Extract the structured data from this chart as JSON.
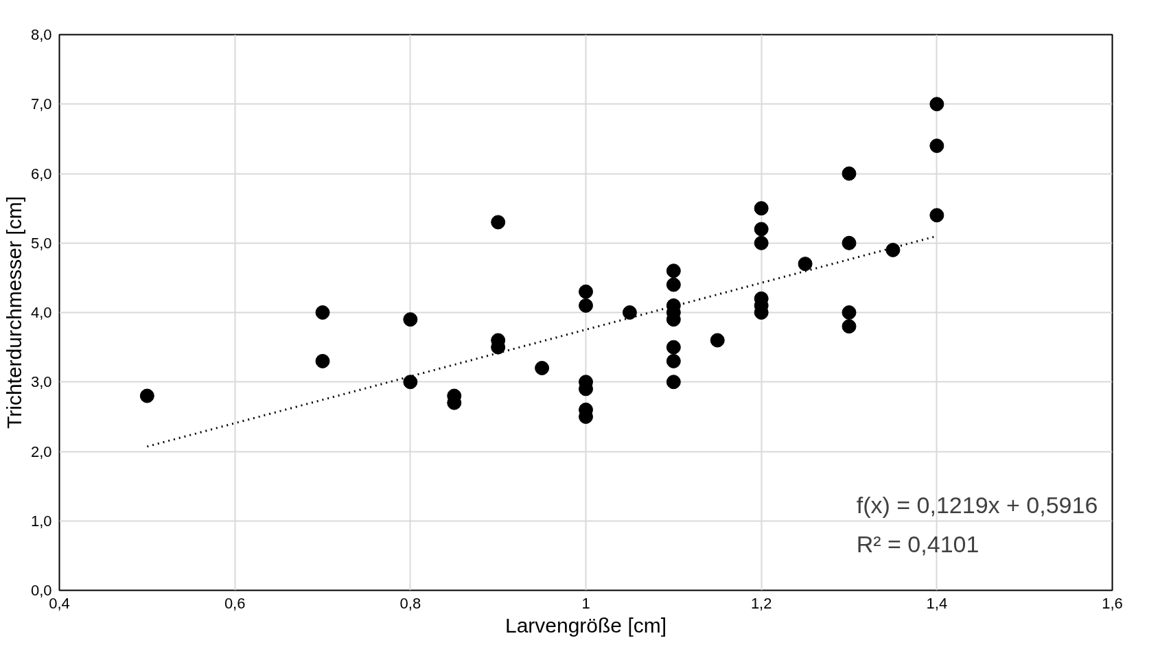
{
  "chart_data": {
    "type": "scatter",
    "xlabel": "Larvengröße [cm]",
    "ylabel": "Trichterdurchmesser [cm]",
    "xlim": [
      0.4,
      1.6
    ],
    "ylim": [
      0,
      8
    ],
    "xticks": [
      {
        "value": 0.4,
        "label": "0,4"
      },
      {
        "value": 0.6,
        "label": "0,6"
      },
      {
        "value": 0.8,
        "label": "0,8"
      },
      1,
      {
        "value": 1.2,
        "label": "1,2"
      },
      {
        "value": 1.4,
        "label": "1,4"
      },
      {
        "value": 1.6,
        "label": "1,6"
      }
    ],
    "yticks": [
      {
        "value": 0,
        "label": "0,0"
      },
      {
        "value": 1,
        "label": "1,0"
      },
      {
        "value": 2,
        "label": "2,0"
      },
      {
        "value": 3,
        "label": "3,0"
      },
      {
        "value": 4,
        "label": "4,0"
      },
      {
        "value": 5,
        "label": "5,0"
      },
      {
        "value": 6,
        "label": "6,0"
      },
      {
        "value": 7,
        "label": "7,0"
      },
      {
        "value": 8,
        "label": "8,0"
      }
    ],
    "grid": true,
    "marker": "circle",
    "series": [
      {
        "color": "#000000",
        "x": [
          0.5,
          0.7,
          0.7,
          0.8,
          0.8,
          0.85,
          0.85,
          0.9,
          0.9,
          0.9,
          0.95,
          1.0,
          1.0,
          1.0,
          1.0,
          1.0,
          1.0,
          1.05,
          1.1,
          1.1,
          1.1,
          1.1,
          1.1,
          1.1,
          1.1,
          1.1,
          1.15,
          1.2,
          1.2,
          1.2,
          1.2,
          1.2,
          1.2,
          1.25,
          1.3,
          1.3,
          1.3,
          1.3,
          1.35,
          1.4,
          1.4,
          1.4
        ],
        "values": [
          2.8,
          4.0,
          3.3,
          3.9,
          3.0,
          2.8,
          2.7,
          5.3,
          3.6,
          3.5,
          3.2,
          4.3,
          4.1,
          3.0,
          2.9,
          2.6,
          2.5,
          4.0,
          4.6,
          4.4,
          4.1,
          4.0,
          3.9,
          3.5,
          3.3,
          3.0,
          3.6,
          5.5,
          5.2,
          5.0,
          4.2,
          4.1,
          4.0,
          4.7,
          6.0,
          5.0,
          4.0,
          3.8,
          4.9,
          7.0,
          6.4,
          5.4
        ]
      },
      {
        "type": "line",
        "color": "#000000",
        "line_style": "dotted",
        "marker": "none",
        "x": [
          0.5,
          1.4
        ],
        "values": [
          2.07,
          5.1
        ]
      }
    ],
    "annotations": [
      "f(x) = 0,1219x + 0,5916",
      "R² = 0,4101"
    ]
  }
}
